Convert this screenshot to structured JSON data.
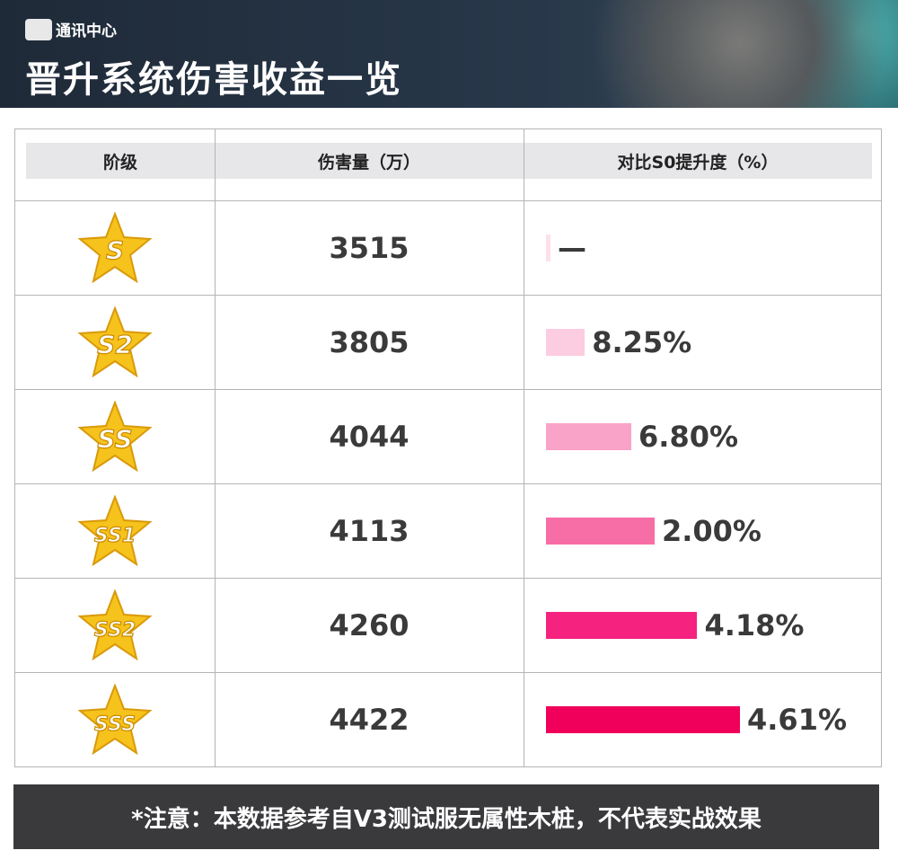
{
  "header": {
    "logo_text": "通讯中心",
    "title": "晋升系统伤害收益一览"
  },
  "table": {
    "columns": [
      "阶级",
      "伤害量（万）",
      "对比S0提升度（%）"
    ],
    "rows": [
      {
        "rank": "S",
        "damage": "3515",
        "increase": "—",
        "bar_level": 0.02,
        "bar_color": "#fde0ea"
      },
      {
        "rank": "S2",
        "damage": "3805",
        "increase": "8.25%",
        "bar_level": 0.2,
        "bar_color": "#fccde0"
      },
      {
        "rank": "SS",
        "damage": "4044",
        "increase": "6.80%",
        "bar_level": 0.44,
        "bar_color": "#f9a3c8"
      },
      {
        "rank": "SS1",
        "damage": "4113",
        "increase": "2.00%",
        "bar_level": 0.56,
        "bar_color": "#f76da5"
      },
      {
        "rank": "SS2",
        "damage": "4260",
        "increase": "4.18%",
        "bar_level": 0.78,
        "bar_color": "#f5237f"
      },
      {
        "rank": "SSS",
        "damage": "4422",
        "increase": "4.61%",
        "bar_level": 1.0,
        "bar_color": "#f0005a"
      }
    ]
  },
  "note": "*注意：本数据参考自V3测试服无属性木桩，不代表实战效果"
}
